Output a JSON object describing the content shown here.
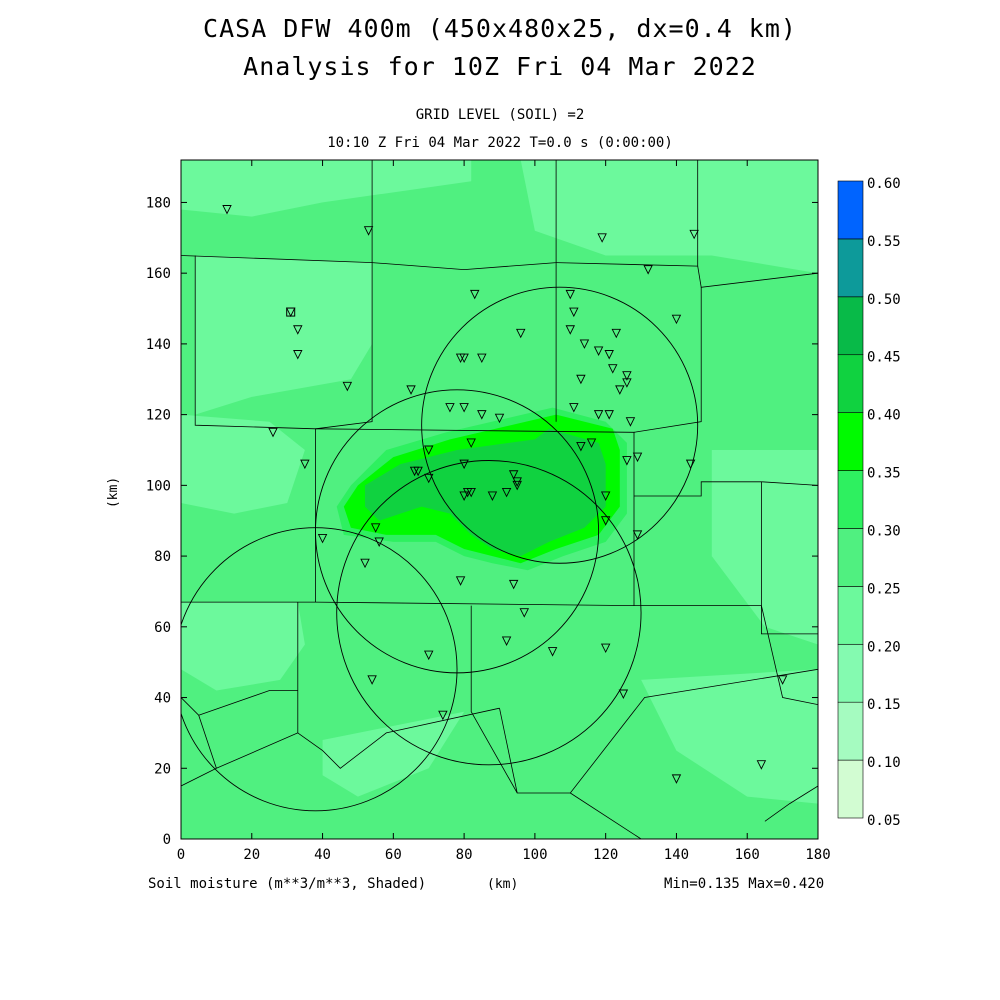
{
  "header": {
    "title_line1": "CASA DFW 400m (450x480x25, dx=0.4 km)",
    "title_line2": "Analysis for 10Z Fri 04 Mar 2022",
    "grid_level": "GRID LEVEL (SOIL) =2",
    "valid_time": "10:10 Z Fri 04 Mar 2022    T=0.0 s (0:00:00)"
  },
  "footer": {
    "field_label": "Soil moisture (m**3/m**3, Shaded)",
    "x_unit": "(km)",
    "minmax": "Min=0.135 Max=0.420"
  },
  "chart_data": {
    "type": "heatmap",
    "xlabel": "(km)",
    "ylabel": "(km)",
    "xlim": [
      0,
      180
    ],
    "ylim": [
      0,
      192
    ],
    "x_ticks": [
      0,
      20,
      40,
      60,
      80,
      100,
      120,
      140,
      160,
      180
    ],
    "y_ticks": [
      0,
      20,
      40,
      60,
      80,
      100,
      120,
      140,
      160,
      180
    ],
    "colorbar": {
      "levels": [
        0.05,
        0.1,
        0.15,
        0.2,
        0.25,
        0.3,
        0.35,
        0.4,
        0.45,
        0.5,
        0.55,
        0.6
      ],
      "level_labels": [
        "0.05",
        "0.10",
        "0.15",
        "0.20",
        "0.25",
        "0.30",
        "0.35",
        "0.40",
        "0.45",
        "0.50",
        "0.55",
        "0.60"
      ],
      "colors": [
        "#d2fcd2",
        "#a5fbc0",
        "#84fab0",
        "#6cf99c",
        "#50f080",
        "#2ef060",
        "#00fa00",
        "#10d240",
        "#08ba48",
        "#0d9a9a",
        "#0064ff"
      ]
    },
    "background_color": "#50f080",
    "regions": [
      {
        "value_class": "0.20-0.25",
        "color": "#6cf99c",
        "polygon": [
          [
            0,
            192
          ],
          [
            82,
            192
          ],
          [
            82,
            186
          ],
          [
            40,
            180
          ],
          [
            20,
            176
          ],
          [
            0,
            178
          ]
        ]
      },
      {
        "value_class": "0.20-0.25",
        "color": "#6cf99c",
        "polygon": [
          [
            4,
            165
          ],
          [
            54,
            163
          ],
          [
            54,
            140
          ],
          [
            48,
            130
          ],
          [
            20,
            125
          ],
          [
            4,
            120
          ]
        ]
      },
      {
        "value_class": "0.20-0.25",
        "color": "#6cf99c",
        "polygon": [
          [
            96,
            192
          ],
          [
            180,
            192
          ],
          [
            180,
            160
          ],
          [
            150,
            165
          ],
          [
            120,
            165
          ],
          [
            100,
            172
          ]
        ]
      },
      {
        "value_class": "0.20-0.25",
        "color": "#6cf99c",
        "polygon": [
          [
            0,
            120
          ],
          [
            25,
            118
          ],
          [
            35,
            110
          ],
          [
            30,
            95
          ],
          [
            15,
            92
          ],
          [
            0,
            95
          ]
        ]
      },
      {
        "value_class": "0.20-0.25",
        "color": "#6cf99c",
        "polygon": [
          [
            150,
            110
          ],
          [
            180,
            110
          ],
          [
            180,
            55
          ],
          [
            165,
            60
          ],
          [
            150,
            80
          ]
        ]
      },
      {
        "value_class": "0.20-0.25",
        "color": "#6cf99c",
        "polygon": [
          [
            0,
            67
          ],
          [
            33,
            67
          ],
          [
            35,
            55
          ],
          [
            28,
            45
          ],
          [
            10,
            42
          ],
          [
            0,
            48
          ]
        ]
      },
      {
        "value_class": "0.20-0.25",
        "color": "#6cf99c",
        "polygon": [
          [
            130,
            45
          ],
          [
            180,
            48
          ],
          [
            180,
            10
          ],
          [
            160,
            12
          ],
          [
            140,
            25
          ]
        ]
      },
      {
        "value_class": "0.20-0.25",
        "color": "#6cf99c",
        "polygon": [
          [
            40,
            28
          ],
          [
            80,
            36
          ],
          [
            70,
            20
          ],
          [
            50,
            12
          ],
          [
            40,
            18
          ]
        ]
      },
      {
        "value_class": "0.30-0.35",
        "color": "#2ef060",
        "polygon": [
          [
            48,
            100
          ],
          [
            58,
            110
          ],
          [
            75,
            115
          ],
          [
            105,
            122
          ],
          [
            120,
            118
          ],
          [
            126,
            112
          ],
          [
            126,
            92
          ],
          [
            120,
            84
          ],
          [
            108,
            80
          ],
          [
            98,
            76
          ],
          [
            88,
            78
          ],
          [
            80,
            80
          ],
          [
            72,
            84
          ],
          [
            60,
            84
          ],
          [
            46,
            86
          ],
          [
            44,
            94
          ]
        ]
      },
      {
        "value_class": "0.35-0.40",
        "color": "#00fa00",
        "polygon": [
          [
            50,
            100
          ],
          [
            60,
            108
          ],
          [
            76,
            113
          ],
          [
            106,
            120
          ],
          [
            122,
            116
          ],
          [
            124,
            110
          ],
          [
            124,
            94
          ],
          [
            118,
            86
          ],
          [
            106,
            82
          ],
          [
            96,
            78
          ],
          [
            88,
            80
          ],
          [
            80,
            82
          ],
          [
            72,
            86
          ],
          [
            58,
            86
          ],
          [
            48,
            88
          ],
          [
            46,
            94
          ]
        ]
      },
      {
        "value_class": "0.40-0.45",
        "color": "#10d240",
        "polygon": [
          [
            52,
            100
          ],
          [
            62,
            106
          ],
          [
            78,
            110
          ],
          [
            100,
            113
          ],
          [
            104,
            116
          ],
          [
            118,
            112
          ],
          [
            120,
            106
          ],
          [
            120,
            94
          ],
          [
            114,
            88
          ],
          [
            104,
            84
          ],
          [
            96,
            80
          ],
          [
            88,
            82
          ],
          [
            82,
            86
          ],
          [
            76,
            92
          ],
          [
            68,
            94
          ],
          [
            56,
            90
          ],
          [
            52,
            94
          ]
        ]
      }
    ],
    "radar_rings": [
      {
        "center": [
          78,
          87
        ],
        "radius": 40
      },
      {
        "center": [
          107,
          117
        ],
        "radius": 39
      },
      {
        "center": [
          38,
          48
        ],
        "radius": 40
      },
      {
        "center": [
          87,
          64
        ],
        "radius": 43
      }
    ],
    "county_lines": [
      [
        [
          0,
          165
        ],
        [
          54,
          163
        ],
        [
          54,
          192
        ]
      ],
      [
        [
          54,
          163
        ],
        [
          80,
          161
        ],
        [
          106,
          163
        ],
        [
          106,
          192
        ]
      ],
      [
        [
          106,
          163
        ],
        [
          146,
          162
        ],
        [
          146,
          192
        ]
      ],
      [
        [
          146,
          162
        ],
        [
          147,
          156
        ],
        [
          180,
          160
        ]
      ],
      [
        [
          4,
          165
        ],
        [
          4,
          117
        ],
        [
          38,
          116
        ],
        [
          38,
          67
        ]
      ],
      [
        [
          54,
          163
        ],
        [
          54,
          118
        ],
        [
          38,
          116
        ]
      ],
      [
        [
          38,
          116
        ],
        [
          128,
          115
        ],
        [
          128,
          66
        ]
      ],
      [
        [
          106,
          163
        ],
        [
          106,
          118
        ]
      ],
      [
        [
          147,
          156
        ],
        [
          147,
          118
        ],
        [
          128,
          115
        ]
      ],
      [
        [
          128,
          97
        ],
        [
          147,
          97
        ],
        [
          147,
          101
        ],
        [
          164,
          101
        ],
        [
          180,
          100
        ]
      ],
      [
        [
          164,
          101
        ],
        [
          164,
          58
        ],
        [
          180,
          58
        ]
      ],
      [
        [
          128,
          66
        ],
        [
          164,
          66
        ],
        [
          170,
          40
        ],
        [
          180,
          38
        ]
      ],
      [
        [
          0,
          67
        ],
        [
          38,
          67
        ],
        [
          128,
          66
        ]
      ],
      [
        [
          33,
          67
        ],
        [
          33,
          30
        ],
        [
          10,
          20
        ],
        [
          0,
          15
        ]
      ],
      [
        [
          0,
          40
        ],
        [
          5,
          35
        ],
        [
          10,
          20
        ]
      ],
      [
        [
          5,
          35
        ],
        [
          25,
          42
        ],
        [
          33,
          42
        ]
      ],
      [
        [
          33,
          30
        ],
        [
          40,
          25
        ],
        [
          45,
          20
        ],
        [
          58,
          30
        ],
        [
          90,
          37
        ]
      ],
      [
        [
          82,
          66
        ],
        [
          82,
          36
        ],
        [
          95,
          13
        ],
        [
          100,
          13
        ],
        [
          110,
          13
        ],
        [
          131,
          40
        ],
        [
          180,
          48
        ]
      ],
      [
        [
          90,
          37
        ],
        [
          95,
          13
        ]
      ],
      [
        [
          110,
          13
        ],
        [
          130,
          0
        ]
      ],
      [
        [
          0,
          192
        ],
        [
          82,
          192
        ]
      ],
      [
        [
          165,
          5
        ],
        [
          172,
          10
        ],
        [
          180,
          15
        ]
      ]
    ],
    "stations": [
      [
        13,
        178
      ],
      [
        53,
        172
      ],
      [
        119,
        170
      ],
      [
        145,
        171
      ],
      [
        83,
        154
      ],
      [
        132,
        161
      ],
      [
        110,
        154
      ],
      [
        111,
        149
      ],
      [
        140,
        147
      ],
      [
        31,
        149
      ],
      [
        33,
        144
      ],
      [
        33,
        137
      ],
      [
        96,
        143
      ],
      [
        110,
        144
      ],
      [
        114,
        140
      ],
      [
        123,
        143
      ],
      [
        79,
        136
      ],
      [
        80,
        136
      ],
      [
        85,
        136
      ],
      [
        118,
        138
      ],
      [
        121,
        137
      ],
      [
        122,
        133
      ],
      [
        126,
        131
      ],
      [
        126,
        129
      ],
      [
        113,
        130
      ],
      [
        47,
        128
      ],
      [
        65,
        127
      ],
      [
        124,
        127
      ],
      [
        76,
        122
      ],
      [
        80,
        122
      ],
      [
        85,
        120
      ],
      [
        90,
        119
      ],
      [
        111,
        122
      ],
      [
        118,
        120
      ],
      [
        121,
        120
      ],
      [
        127,
        118
      ],
      [
        26,
        115
      ],
      [
        82,
        112
      ],
      [
        116,
        112
      ],
      [
        113,
        111
      ],
      [
        35,
        106
      ],
      [
        70,
        110
      ],
      [
        80,
        106
      ],
      [
        126,
        107
      ],
      [
        129,
        108
      ],
      [
        144,
        106
      ],
      [
        66,
        104
      ],
      [
        67,
        104
      ],
      [
        70,
        102
      ],
      [
        94,
        103
      ],
      [
        95,
        101
      ],
      [
        95,
        100
      ],
      [
        92,
        98
      ],
      [
        80,
        97
      ],
      [
        81,
        98
      ],
      [
        82,
        98
      ],
      [
        88,
        97
      ],
      [
        120,
        97
      ],
      [
        55,
        88
      ],
      [
        56,
        84
      ],
      [
        40,
        85
      ],
      [
        52,
        78
      ],
      [
        120,
        90
      ],
      [
        129,
        86
      ],
      [
        79,
        73
      ],
      [
        94,
        72
      ],
      [
        97,
        64
      ],
      [
        92,
        56
      ],
      [
        70,
        52
      ],
      [
        105,
        53
      ],
      [
        120,
        54
      ],
      [
        54,
        45
      ],
      [
        74,
        35
      ],
      [
        125,
        41
      ],
      [
        140,
        17
      ],
      [
        164,
        21
      ],
      [
        170,
        45
      ]
    ],
    "radar_site_marker": [
      31,
      149
    ]
  }
}
